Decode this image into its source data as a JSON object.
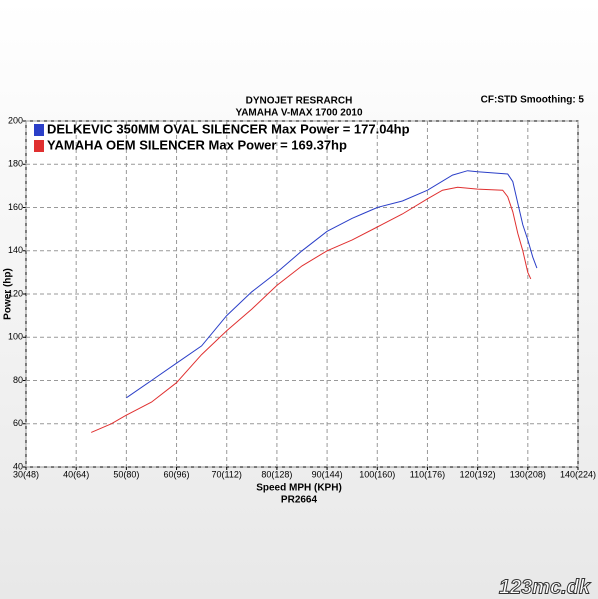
{
  "chart_data": {
    "type": "line",
    "title": "DYNOJET RESRARCH",
    "subtitle": "YAMAHA V-MAX 1700 2010",
    "settings_label": "CF:STD Smoothing: 5",
    "x_label": "Speed MPH (KPH)",
    "footnote": "PR2664",
    "y_label": "Power (hp)",
    "watermark": "123mc.dk",
    "grid": true,
    "xlim": [
      30,
      140
    ],
    "ylim": [
      40,
      200
    ],
    "xticks": [
      {
        "value": 30,
        "label": "30(48)"
      },
      {
        "value": 40,
        "label": "40(64)"
      },
      {
        "value": 50,
        "label": "50(80)"
      },
      {
        "value": 60,
        "label": "60(96)"
      },
      {
        "value": 70,
        "label": "70(112)"
      },
      {
        "value": 80,
        "label": "80(128)"
      },
      {
        "value": 90,
        "label": "90(144)"
      },
      {
        "value": 100,
        "label": "100(160)"
      },
      {
        "value": 110,
        "label": "110(176)"
      },
      {
        "value": 120,
        "label": "120(192)"
      },
      {
        "value": 130,
        "label": "130(208)"
      },
      {
        "value": 140,
        "label": "140(224)"
      }
    ],
    "yticks": [
      40,
      60,
      80,
      100,
      120,
      140,
      160,
      180,
      200
    ],
    "series": [
      {
        "name": "DELKEVIC 350MM OVAL SILENCER  Max Power = 177.04hp",
        "color": "#2b3fc8",
        "x": [
          50,
          55,
          60,
          65,
          70,
          75,
          80,
          85,
          90,
          95,
          97,
          100,
          105,
          110,
          115,
          118,
          120,
          123,
          126,
          127,
          128,
          129,
          130,
          131,
          131.8
        ],
        "values": [
          72,
          80,
          88,
          96,
          110,
          121,
          130,
          140,
          149,
          155,
          157,
          160,
          163,
          168,
          175,
          177,
          176.5,
          176,
          175.5,
          172,
          162,
          152,
          145,
          137,
          132
        ]
      },
      {
        "name": "YAMAHA OEM SILENCER Max Power = 169.37hp",
        "color": "#e03030",
        "x": [
          43,
          47,
          50,
          55,
          60,
          65,
          70,
          75,
          80,
          85,
          90,
          95,
          100,
          105,
          110,
          113,
          116,
          120,
          125,
          126,
          127,
          128,
          129,
          130,
          130.6
        ],
        "values": [
          56,
          60,
          64,
          70,
          79,
          92,
          103,
          113,
          124,
          133,
          140,
          145,
          151,
          157,
          164,
          168,
          169.4,
          168.5,
          168,
          165,
          158,
          148,
          140,
          130,
          127
        ]
      }
    ]
  }
}
